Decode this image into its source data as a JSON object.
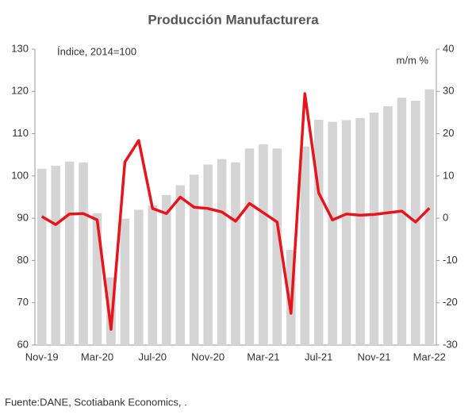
{
  "chart_data": {
    "type": "bar-line",
    "title": "Producción Manufacturera",
    "y_label": "Índice, 2014=100",
    "y2_label": "m/m %",
    "source": "Fuente:DANE,  Scotiabank Economics, .",
    "categories": [
      "Nov-19",
      null,
      null,
      null,
      "Mar-20",
      null,
      null,
      null,
      "Jul-20",
      null,
      null,
      null,
      "Nov-20",
      null,
      null,
      null,
      "Mar-21",
      null,
      null,
      null,
      "Jul-21",
      null,
      null,
      null,
      "Nov-21",
      null,
      null,
      null,
      "Mar-22"
    ],
    "series": [
      {
        "type": "bar",
        "color": "#d4d4d4",
        "values": [
          101.7,
          102.4,
          103.4,
          103.2,
          91.2,
          76,
          89.9,
          92,
          93,
          95.5,
          97.8,
          100.3,
          102.7,
          104,
          103.2,
          106.5,
          107.5,
          106.5,
          82.5,
          107,
          113.3,
          112.8,
          113.2,
          113.7,
          115,
          116.5,
          118.5,
          117.8,
          120.5
        ]
      },
      {
        "type": "line",
        "axis": "y2",
        "color": "#e8141c",
        "values": [
          0.4,
          -1.5,
          1,
          1.1,
          -0.4,
          -26.3,
          13.3,
          18.4,
          2.3,
          1.1,
          5,
          2.6,
          2.3,
          1.5,
          -0.7,
          3.5,
          1.3,
          -0.9,
          -22.5,
          29.5,
          6,
          -0.4,
          1,
          0.7,
          0.9,
          1.3,
          1.7,
          -0.9,
          2.4
        ]
      }
    ],
    "ylim": [
      60,
      130
    ],
    "yticks": [
      60,
      70,
      80,
      90,
      100,
      110,
      120,
      130
    ],
    "y2lim": [
      -30,
      40
    ],
    "y2ticks": [
      -30,
      -20,
      -10,
      0,
      10,
      20,
      30,
      40
    ]
  }
}
